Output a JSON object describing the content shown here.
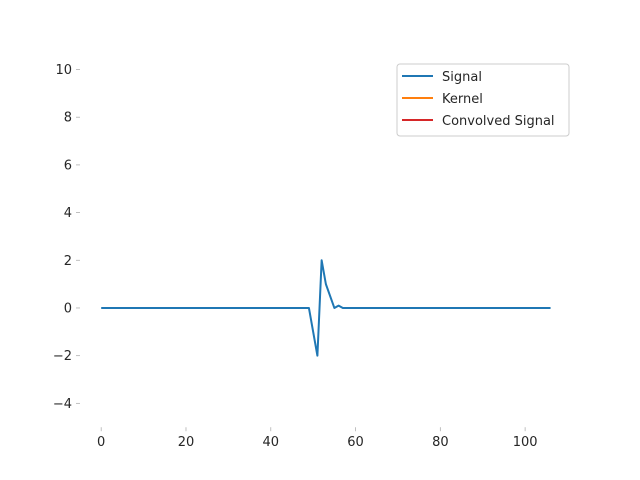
{
  "chart_data": {
    "type": "line",
    "title": "",
    "xlabel": "",
    "ylabel": "",
    "xlim": [
      -5,
      112
    ],
    "ylim": [
      -5,
      10.5
    ],
    "xticks": [
      0,
      20,
      40,
      60,
      80,
      100
    ],
    "yticks": [
      -4,
      -2,
      0,
      2,
      4,
      6,
      8,
      10
    ],
    "grid": false,
    "legend_position": "top-right",
    "series": [
      {
        "name": "Signal",
        "color": "#1f77b4",
        "x": [
          0,
          49,
          51,
          52,
          53,
          55,
          56,
          57,
          58,
          106
        ],
        "y": [
          0,
          0,
          -2,
          2,
          1,
          0,
          0.1,
          0,
          0,
          0
        ]
      },
      {
        "name": "Kernel",
        "color": "#ff7f0e",
        "x": [],
        "y": []
      },
      {
        "name": "Convolved Signal",
        "color": "#d62728",
        "x": [],
        "y": []
      }
    ]
  }
}
